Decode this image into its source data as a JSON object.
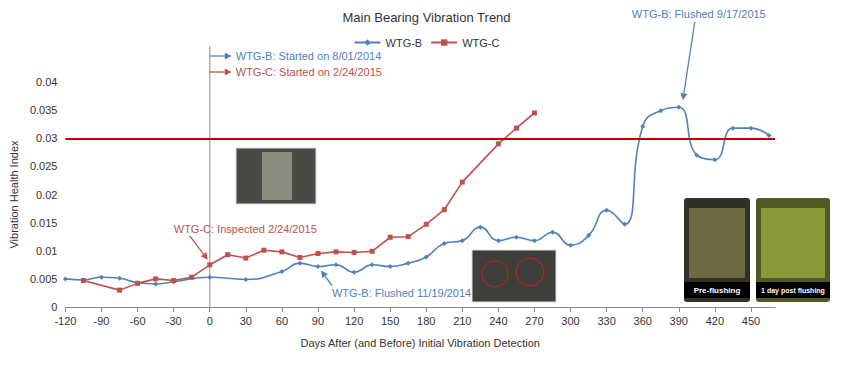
{
  "chart_data": {
    "type": "line",
    "title": "Main Bearing Vibration Trend",
    "x_label": "Days After (and Before) Initial Vibration Detection",
    "y_label": "Vibration Health Index",
    "xlim": [
      -120,
      470
    ],
    "xticks": [
      -120,
      -90,
      -60,
      -30,
      0,
      30,
      60,
      90,
      120,
      150,
      180,
      210,
      240,
      270,
      300,
      330,
      360,
      390,
      420,
      450
    ],
    "ylim": [
      0,
      0.04
    ],
    "yticks": [
      0,
      0.005,
      0.01,
      0.015,
      0.02,
      0.025,
      0.03,
      0.035,
      0.04
    ],
    "grid": false,
    "legend": "top",
    "series": [
      {
        "name": "WTG-B",
        "color": "#4f81bd",
        "marker": "diamond",
        "line_style": "smooth",
        "x": [
          -120,
          -105,
          -90,
          -75,
          -60,
          -45,
          -30,
          0,
          30,
          60,
          75,
          90,
          105,
          120,
          135,
          150,
          165,
          180,
          195,
          210,
          225,
          240,
          255,
          270,
          285,
          300,
          315,
          330,
          345,
          360,
          375,
          390,
          405,
          420,
          435,
          450,
          465
        ],
        "values": [
          0.005,
          0.0048,
          0.0053,
          0.0051,
          0.0043,
          0.0041,
          0.0045,
          0.0053,
          0.0049,
          0.0063,
          0.0078,
          0.0072,
          0.0075,
          0.0062,
          0.0075,
          0.0072,
          0.0078,
          0.0089,
          0.0113,
          0.0118,
          0.0142,
          0.0118,
          0.0124,
          0.0118,
          0.0133,
          0.011,
          0.0127,
          0.0172,
          0.0147,
          0.0321,
          0.0349,
          0.0355,
          0.027,
          0.0262,
          0.0318,
          0.0318,
          0.0305
        ]
      },
      {
        "name": "WTG-C",
        "color": "#c0504d",
        "marker": "square",
        "line_style": "solid",
        "x": [
          -105,
          -75,
          -60,
          -45,
          -30,
          -15,
          0,
          15,
          30,
          45,
          60,
          75,
          90,
          105,
          120,
          135,
          150,
          165,
          180,
          195,
          210,
          240,
          255,
          270
        ],
        "values": [
          0.0047,
          0.003,
          0.0042,
          0.005,
          0.0047,
          0.0053,
          0.0075,
          0.0093,
          0.0087,
          0.0101,
          0.0098,
          0.0088,
          0.0095,
          0.0098,
          0.0097,
          0.0099,
          0.0124,
          0.0125,
          0.0147,
          0.0173,
          0.0222,
          0.029,
          0.0318,
          0.0345
        ]
      }
    ],
    "threshold": {
      "value": 0.03,
      "color": "#c00000"
    },
    "detection_day": 0,
    "annotations": [
      {
        "text": "WTG-B: Started on 8/01/2014",
        "color": "#4f81bd",
        "x": 0
      },
      {
        "text": "WTG-C: Started on 2/24/2015",
        "color": "#c0504d",
        "x": 0
      },
      {
        "text": "WTG-C: Inspected 2/24/2015",
        "color": "#c0504d",
        "series": "WTG-C",
        "x": 0
      },
      {
        "text": "WTG-B: Flushed 11/19/2014",
        "color": "#4f81bd",
        "series": "WTG-B",
        "x": 90
      },
      {
        "text": "WTG-B: Flushed 9/17/2015",
        "color": "#4f81bd",
        "series": "WTG-B",
        "x": 390
      }
    ],
    "photos": [
      {
        "caption": "Pre-flushing"
      },
      {
        "caption": "1 day post flushing"
      }
    ]
  }
}
